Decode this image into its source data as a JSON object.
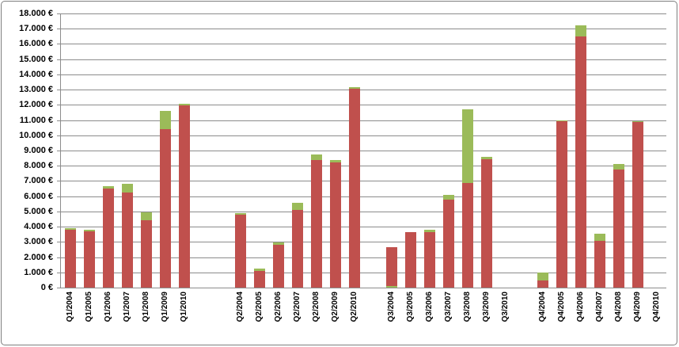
{
  "chart_data": {
    "type": "bar",
    "stacked": true,
    "title": "",
    "legend": "none",
    "grid": true,
    "ylim": [
      0,
      18000
    ],
    "y_axis": {
      "min": 0,
      "max": 18000,
      "step": 1000,
      "tick_labels": [
        "0 €",
        "1.000 €",
        "2.000 €",
        "3.000 €",
        "4.000 €",
        "5.000 €",
        "6.000 €",
        "7.000 €",
        "8.000 €",
        "9.000 €",
        "10.000 €",
        "11.000 €",
        "12.000 €",
        "13.000 €",
        "14.000 €",
        "15.000 €",
        "16.000 €",
        "17.000 €",
        "18.000 €"
      ]
    },
    "categories": [
      "Q1/2004",
      "Q1/2005",
      "Q1/2006",
      "Q1/2007",
      "Q1/2008",
      "Q1/2009",
      "Q1/2010",
      "Q2/2004",
      "Q2/2005",
      "Q2/2006",
      "Q2/2007",
      "Q2/2008",
      "Q2/2009",
      "Q2/2010",
      "Q3/2004",
      "Q3/2005",
      "Q3/2006",
      "Q3/2007",
      "Q3/2008",
      "Q3/2009",
      "Q3/2010",
      "Q4/2004",
      "Q4/2005",
      "Q4/2006",
      "Q4/2007",
      "Q4/2008",
      "Q4/2009",
      "Q4/2010"
    ],
    "series": [
      {
        "name": "red",
        "color": "#C0504D",
        "values": [
          3800,
          3700,
          6500,
          6250,
          4400,
          10400,
          11950,
          4800,
          1100,
          2800,
          5100,
          8400,
          8200,
          13050,
          2550,
          3650,
          3650,
          5800,
          6850,
          8450,
          0,
          450,
          10900,
          16500,
          3050,
          7750,
          10850,
          0
        ]
      },
      {
        "name": "green",
        "color": "#9BBB59",
        "values": [
          100,
          100,
          150,
          550,
          550,
          1200,
          100,
          100,
          150,
          150,
          450,
          350,
          200,
          100,
          100,
          0,
          150,
          300,
          4850,
          150,
          0,
          550,
          100,
          700,
          500,
          350,
          100,
          0
        ]
      }
    ],
    "segment_order_default": [
      "red",
      "green"
    ],
    "segment_order_overrides": {
      "Q3/2004": [
        "green",
        "red"
      ]
    }
  },
  "colors": {
    "bar_red": "#C0504D",
    "bar_green": "#9BBB59",
    "gridline": "#8C8C8C",
    "frame_border": "#7F7F7F",
    "background": "#FFFFFF",
    "text": "#000000"
  }
}
